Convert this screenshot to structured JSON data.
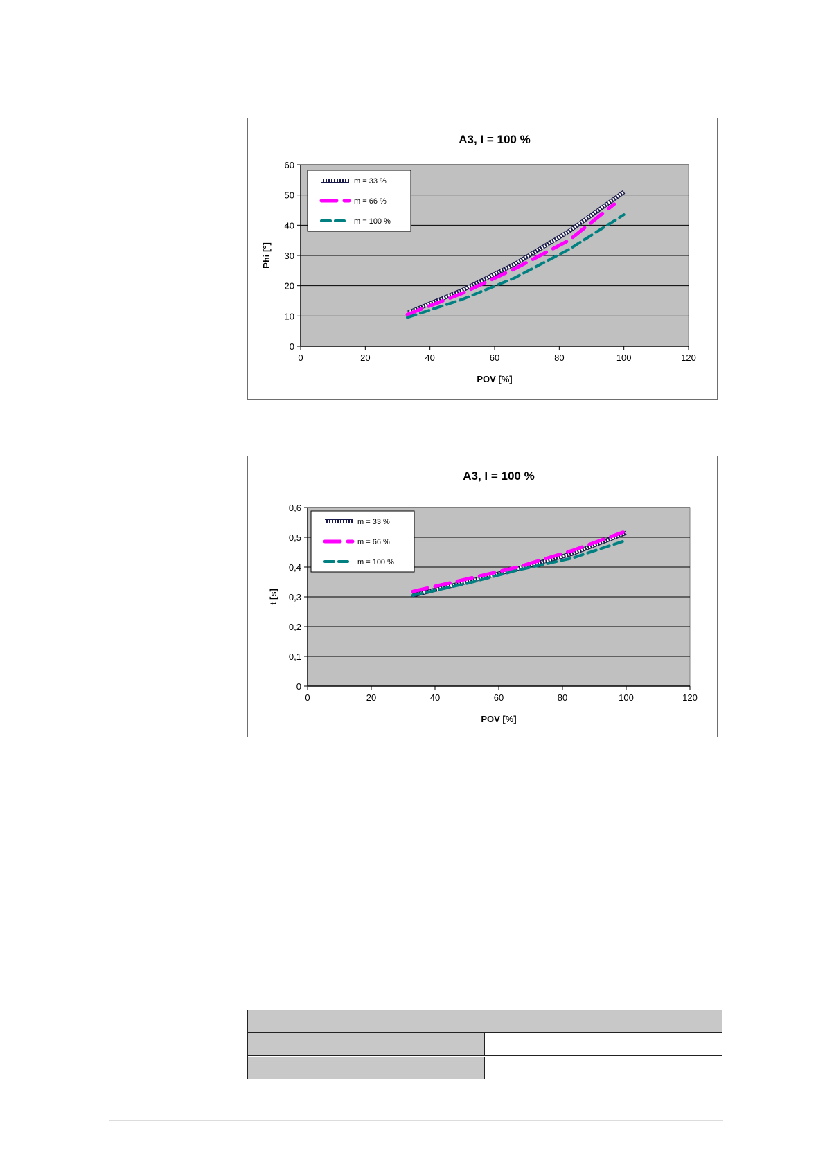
{
  "chart_data": [
    {
      "type": "line",
      "title": "A3,  I = 100 %",
      "xlabel": "POV [%]",
      "ylabel": "Phi [°]",
      "xlim": [
        0,
        120
      ],
      "ylim": [
        0,
        60
      ],
      "xticks": [
        0,
        20,
        40,
        60,
        80,
        100,
        120
      ],
      "yticks": [
        0,
        10,
        20,
        30,
        40,
        50,
        60
      ],
      "ytick_labels": [
        "0",
        "10",
        "20",
        "30",
        "40",
        "50",
        "60"
      ],
      "grid": true,
      "legend": "top-left",
      "series": [
        {
          "name": "m = 33 %",
          "x": [
            33,
            50,
            66,
            83,
            100
          ],
          "y": [
            11,
            18.5,
            27,
            38,
            51
          ]
        },
        {
          "name": "m = 66 %",
          "x": [
            33,
            50,
            66,
            83,
            97
          ],
          "y": [
            10.5,
            17.5,
            25.5,
            35,
            47
          ]
        },
        {
          "name": "m = 100 %",
          "x": [
            33,
            50,
            66,
            83,
            100
          ],
          "y": [
            9.5,
            15.5,
            22.5,
            32,
            43.5
          ]
        }
      ]
    },
    {
      "type": "line",
      "title": "A3,  I = 100 %",
      "xlabel": "POV [%]",
      "ylabel": "t [s]",
      "xlim": [
        0,
        120
      ],
      "ylim": [
        0,
        0.6
      ],
      "xticks": [
        0,
        20,
        40,
        60,
        80,
        100,
        120
      ],
      "yticks": [
        0,
        0.1,
        0.2,
        0.3,
        0.4,
        0.5,
        0.6
      ],
      "ytick_labels": [
        "0",
        "0,1",
        "0,2",
        "0,3",
        "0,4",
        "0,5",
        "0,6"
      ],
      "grid": true,
      "legend": "top-left",
      "series": [
        {
          "name": "m = 33 %",
          "x": [
            33,
            50,
            66,
            83,
            100
          ],
          "y": [
            0.305,
            0.35,
            0.395,
            0.445,
            0.515
          ]
        },
        {
          "name": "m = 66 %",
          "x": [
            33,
            50,
            66,
            83,
            99
          ],
          "y": [
            0.318,
            0.36,
            0.4,
            0.455,
            0.517
          ]
        },
        {
          "name": "m = 100 %",
          "x": [
            33,
            50,
            66,
            83,
            100
          ],
          "y": [
            0.305,
            0.345,
            0.39,
            0.43,
            0.49
          ]
        }
      ]
    }
  ],
  "colors": {
    "plot_bg": "#c0c0c0",
    "series_m33": "#ffffff",
    "series_m66": "#ff00ff",
    "series_m100": "#008080"
  }
}
